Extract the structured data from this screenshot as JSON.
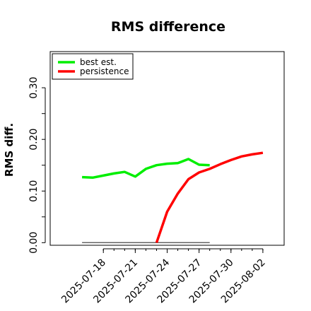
{
  "chart_data": {
    "type": "line",
    "title": "RMS difference",
    "xlabel": "",
    "ylabel": "RMS diff.",
    "ylim": [
      -0.005,
      0.37
    ],
    "xlim": [
      "2025-07-13",
      "2025-08-04"
    ],
    "y_ticks": [
      "0.00",
      "0.10",
      "0.20",
      "0.30"
    ],
    "y_tick_values": [
      0.0,
      0.1,
      0.2,
      0.3
    ],
    "x_ticks": [
      "2025-07-18",
      "2025-07-21",
      "2025-07-24",
      "2025-07-27",
      "2025-07-30",
      "2025-08-02"
    ],
    "legend_position": "top-left",
    "grid": false,
    "series": [
      {
        "name": "best est.",
        "color": "#00ee00",
        "x": [
          "2025-07-16",
          "2025-07-17",
          "2025-07-18",
          "2025-07-19",
          "2025-07-20",
          "2025-07-21",
          "2025-07-22",
          "2025-07-23",
          "2025-07-24",
          "2025-07-25",
          "2025-07-26",
          "2025-07-27",
          "2025-07-28"
        ],
        "values": [
          0.127,
          0.126,
          0.13,
          0.134,
          0.137,
          0.128,
          0.143,
          0.15,
          0.153,
          0.154,
          0.162,
          0.151,
          0.15
        ]
      },
      {
        "name": "persistence",
        "color": "#ff0000",
        "x": [
          "2025-07-23",
          "2025-07-24",
          "2025-07-25",
          "2025-07-26",
          "2025-07-27",
          "2025-07-28",
          "2025-07-29",
          "2025-07-30",
          "2025-07-31",
          "2025-08-01",
          "2025-08-02"
        ],
        "values": [
          0.0,
          0.06,
          0.095,
          0.123,
          0.136,
          0.143,
          0.152,
          0.16,
          0.167,
          0.171,
          0.174
        ]
      },
      {
        "name": "",
        "color": "#666666",
        "x": [
          "2025-07-16",
          "2025-07-28"
        ],
        "values": [
          0.0,
          0.0
        ]
      }
    ]
  }
}
